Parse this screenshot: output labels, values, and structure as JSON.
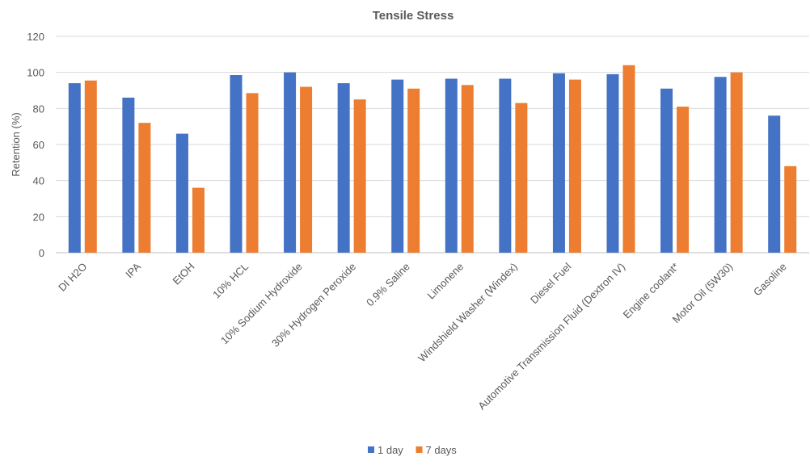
{
  "chart_data": {
    "type": "bar",
    "title": "Tensile Stress",
    "xlabel": "",
    "ylabel": "Retention (%)",
    "ylim": [
      0,
      120
    ],
    "yticks": [
      0,
      20,
      40,
      60,
      80,
      100,
      120
    ],
    "grid": true,
    "legend_position": "bottom",
    "categories": [
      "DI H2O",
      "IPA",
      "EtOH",
      "10% HCL",
      "10% Sodium Hydroxide",
      "30% Hydrogen Peroxide",
      "0.9% Saline",
      "Limonene",
      "Windshield Washer (Windex)",
      "Diesel Fuel",
      "Automotive Transmission Fluid (Dextron IV)",
      "Engine coolant*",
      "Motor Oil (5W30)",
      "Gasoline"
    ],
    "series": [
      {
        "name": "1 day",
        "color": "#4472C4",
        "values": [
          94,
          86,
          66,
          98.5,
          100,
          94,
          96,
          96.5,
          96.5,
          99.5,
          99,
          91,
          97.5,
          76
        ]
      },
      {
        "name": "7 days",
        "color": "#ED7D31",
        "values": [
          95.5,
          72,
          36,
          88.5,
          92,
          85,
          91,
          93,
          83,
          96,
          104,
          81,
          100,
          48
        ]
      }
    ]
  }
}
